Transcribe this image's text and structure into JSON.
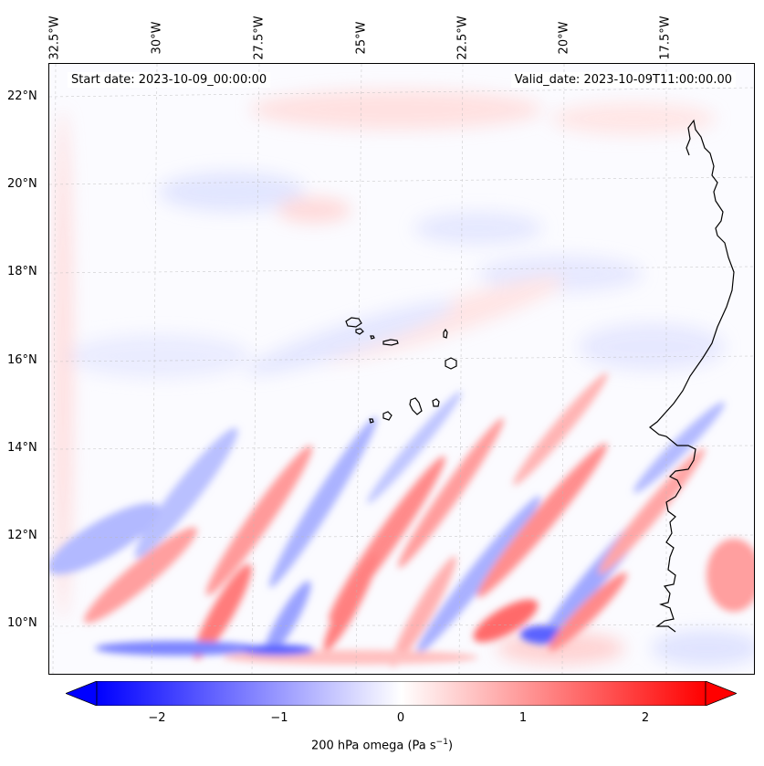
{
  "annotations": {
    "start_date": "Start date: 2023-10-09_00:00:00",
    "valid_date": "Valid_date: 2023-10-09T11:00:00.00"
  },
  "longitude_labels": [
    "32.5°W",
    "30°W",
    "27.5°W",
    "25°W",
    "22.5°W",
    "20°W",
    "17.5°W"
  ],
  "latitude_labels": [
    "22°N",
    "20°N",
    "18°N",
    "16°N",
    "14°N",
    "12°N",
    "10°N"
  ],
  "colorbar": {
    "ticks": [
      "−2",
      "−1",
      "0",
      "1",
      "2"
    ],
    "label_text": "200 hPa omega (Pa s",
    "label_exponent": "−1",
    "label_close": ")",
    "min": -2.6,
    "max": 2.6,
    "colors": {
      "negative": "#0000ff",
      "zero": "#ffffff",
      "positive": "#ff0000"
    }
  },
  "coastline_color": "#000000"
}
